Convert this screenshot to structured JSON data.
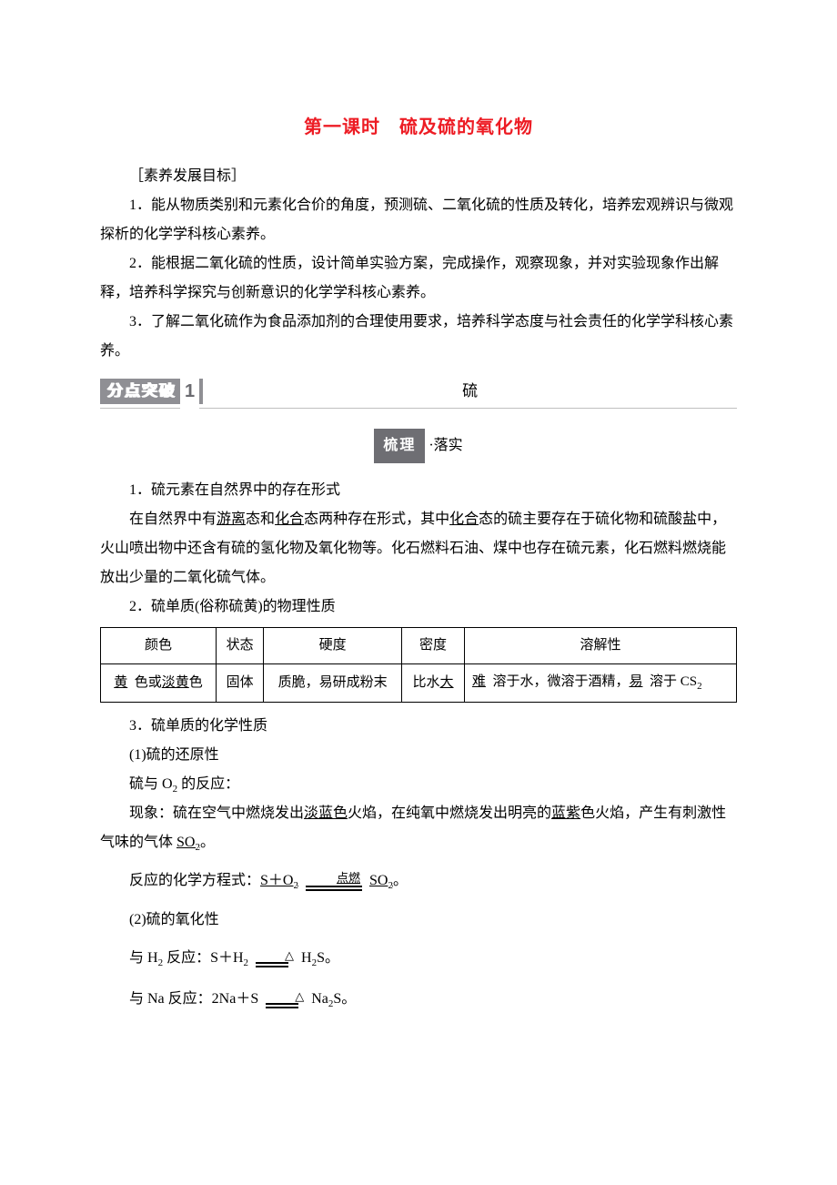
{
  "title": "第一课时　硫及硫的氧化物",
  "goals_heading": "［素养发展目标］",
  "goals": [
    "1．能从物质类别和元素化合价的角度，预测硫、二氧化硫的性质及转化，培养宏观辨识与微观探析的化学学科核心素养。",
    "2．能根据二氧化硫的性质，设计简单实验方案，完成操作，观察现象，并对实验现象作出解释，培养科学探究与创新意识的化学学科核心素养。",
    "3．了解二氧化硫作为食品添加剂的合理使用要求，培养科学态度与社会责任的化学学科核心素养。"
  ],
  "banner": {
    "label": "分点突破",
    "num": "1",
    "topic": "硫"
  },
  "subheading": {
    "badge": "梳理",
    "after": "·落实"
  },
  "point1": {
    "title": "1．硫元素在自然界中的存在形式",
    "before1": "在自然界中有",
    "u1": "游离",
    "mid1": "态和",
    "u2": "化合",
    "mid2": "态两种存在形式，其中",
    "u3": "化合",
    "after1": "态的硫主要存在于硫化物和硫酸盐中，火山喷出物中还含有硫的氢化物及氧化物等。化石燃料石油、煤中也存在硫元素，化石燃料燃烧能放出少量的二氧化硫气体。"
  },
  "point2": {
    "title": "2．硫单质(俗称硫黄)的物理性质",
    "headers": [
      "颜色",
      "状态",
      "硬度",
      "密度",
      "溶解性"
    ],
    "row": {
      "color_u1": "黄",
      "color_mid": "色或",
      "color_u2": "淡黄",
      "color_after": "色",
      "state": "固体",
      "hardness": "质脆，易研成粉末",
      "density_pre": "比水",
      "density_u": "大",
      "solub_u1": "难",
      "solub_mid1": "溶于水，微溶于酒精，",
      "solub_u2": "易",
      "solub_mid2": "溶于 CS",
      "solub_sub": "2"
    }
  },
  "point3": {
    "title": "3．硫单质的化学性质",
    "sub1_title": "(1)硫的还原性",
    "o2_line_pre": "硫与 O",
    "o2_line_sub": "2",
    "o2_line_after": " 的反应：",
    "phenom_pre": "现象：硫在空气中燃烧发出",
    "phenom_u1": "淡蓝色",
    "phenom_mid": "火焰，在纯氧中燃烧发出明亮的",
    "phenom_u2": "蓝紫",
    "phenom_mid2": "色火焰，产生有刺激性气味的气体 ",
    "phenom_gas": "SO",
    "phenom_gas_sub": "2",
    "phenom_end": "。",
    "eq_label": "反应的化学方程式：",
    "eq1_left": "S＋O",
    "eq1_lsub": "2",
    "eq1_cond": "点燃",
    "eq1_right": "SO",
    "eq1_rsub": "2",
    "eq1_end": "。",
    "sub2_title": "(2)硫的氧化性",
    "h2_pre": "与 H",
    "h2_sub": "2",
    "h2_mid": " 反应：S＋H",
    "h2_sub2": "2",
    "h2s": " H",
    "h2s_sub": "2",
    "h2s_after": "S。",
    "na_pre": "与 Na 反应：2Na＋S ",
    "na_right": " Na",
    "na_sub": "2",
    "na_after": "S。"
  },
  "colors": {
    "title": "#ed1c24",
    "badge_bg": "#8f8f94",
    "badge2_bg": "#6e6e73",
    "border": "#000000"
  }
}
